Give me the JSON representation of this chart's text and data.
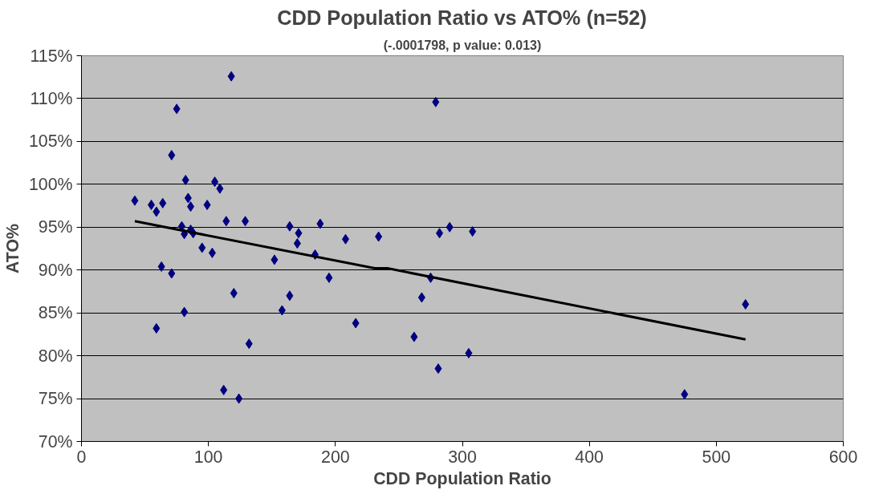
{
  "chart_data": {
    "type": "scatter",
    "title": "CDD Population Ratio vs ATO% (n=52)",
    "subtitle": "(-.0001798, p value: 0.013)",
    "xlabel": "CDD Population Ratio",
    "ylabel": "ATO%",
    "xlim": [
      0,
      600
    ],
    "xticks": [
      0,
      100,
      200,
      300,
      400,
      500,
      600
    ],
    "ylim": [
      70,
      115
    ],
    "yticks": [
      {
        "value": 70,
        "label": "70%"
      },
      {
        "value": 75,
        "label": "75%"
      },
      {
        "value": 80,
        "label": "80%"
      },
      {
        "value": 85,
        "label": "85%"
      },
      {
        "value": 90,
        "label": "90%"
      },
      {
        "value": 95,
        "label": "95%"
      },
      {
        "value": 100,
        "label": "100%"
      },
      {
        "value": 105,
        "label": "105%"
      },
      {
        "value": 110,
        "label": "110%"
      },
      {
        "value": 115,
        "label": "115%"
      }
    ],
    "grid": "y",
    "marker": "diamond",
    "series": [
      {
        "color": "#000080",
        "x": [
          42,
          55,
          59,
          64,
          63,
          59,
          71,
          71,
          75,
          79,
          81,
          81,
          82,
          84,
          86,
          86,
          88,
          95,
          99,
          103,
          105,
          109,
          112,
          114,
          118,
          120,
          124,
          129,
          132,
          152,
          158,
          164,
          164,
          171,
          170,
          184,
          188,
          195,
          208,
          216,
          234,
          262,
          268,
          275,
          279,
          281,
          282,
          290,
          305,
          308,
          475,
          523
        ],
        "values": [
          98.1,
          97.6,
          96.8,
          97.8,
          90.4,
          83.2,
          89.6,
          103.4,
          108.8,
          95.1,
          94.2,
          85.1,
          100.5,
          98.4,
          97.4,
          94.7,
          94.3,
          92.6,
          97.6,
          92.0,
          100.3,
          99.5,
          76.0,
          95.7,
          112.6,
          87.3,
          75.0,
          95.7,
          81.4,
          91.2,
          85.3,
          87.0,
          95.1,
          94.3,
          93.1,
          91.8,
          95.4,
          89.1,
          93.6,
          83.8,
          93.9,
          82.2,
          86.8,
          89.1,
          109.6,
          78.5,
          94.3,
          95.0,
          80.3,
          94.5,
          75.5,
          86.0
        ]
      },
      {
        "type": "line",
        "color": "#000000",
        "marker": "none",
        "line_style": "solid",
        "x": [
          42,
          231,
          241,
          523
        ],
        "values": [
          95.7,
          90.2,
          90.2,
          81.9
        ]
      }
    ]
  }
}
